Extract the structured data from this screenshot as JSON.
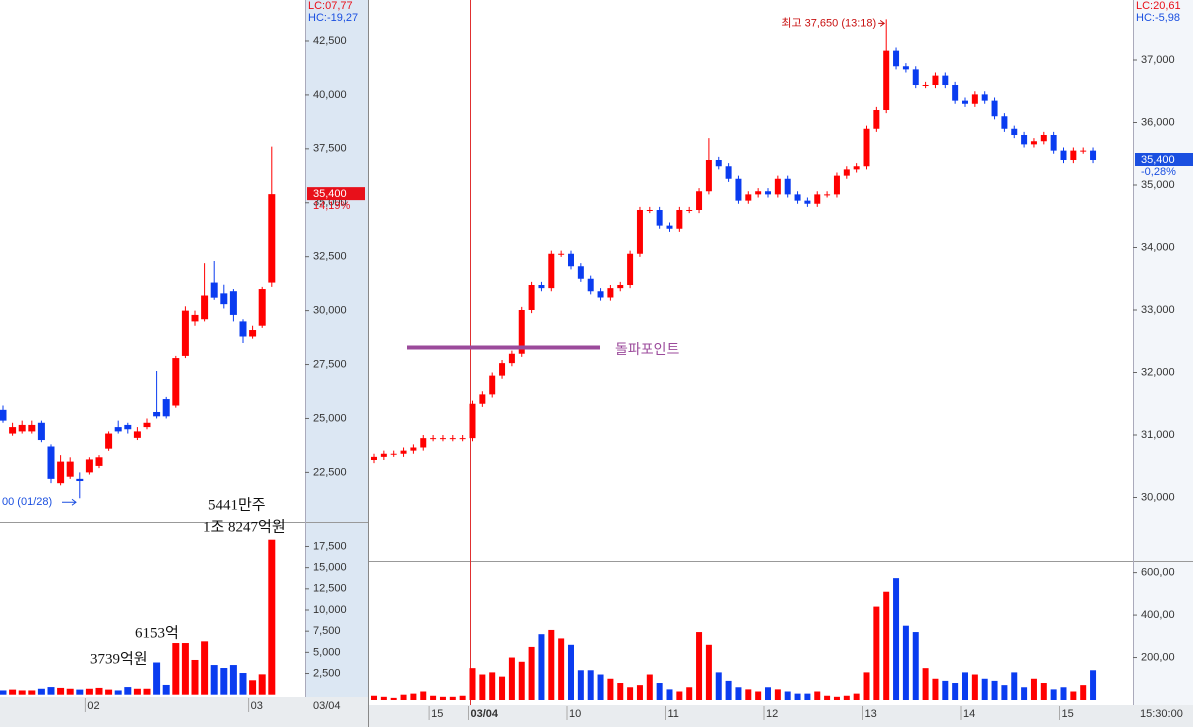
{
  "chart_data": [
    {
      "type": "candlestick",
      "categories": [
        null,
        null,
        null,
        null,
        null,
        null,
        null,
        null,
        null,
        "02",
        null,
        null,
        null,
        null,
        null,
        null,
        null,
        null,
        null,
        null,
        null,
        null,
        null,
        null,
        null,
        null,
        "03",
        null,
        null
      ],
      "open": [
        25400,
        24300,
        24400,
        24400,
        24800,
        23700,
        22000,
        22300,
        22200,
        22500,
        22800,
        23600,
        24600,
        24700,
        24100,
        24600,
        25300,
        25900,
        25600,
        27900,
        29500,
        29600,
        31300,
        30800,
        30900,
        29500,
        28800,
        29300,
        31300
      ],
      "high": [
        25600,
        24800,
        24900,
        24900,
        24900,
        23800,
        23300,
        23200,
        22500,
        23200,
        23300,
        24400,
        24900,
        24800,
        24600,
        25000,
        27200,
        26000,
        27900,
        30200,
        30000,
        32200,
        32300,
        31200,
        31000,
        29600,
        29300,
        31100,
        37600
      ],
      "low": [
        24800,
        24200,
        24300,
        24300,
        23900,
        22000,
        21900,
        22200,
        21300,
        22400,
        22700,
        23500,
        24300,
        24300,
        24000,
        24500,
        25000,
        25000,
        25500,
        27800,
        29300,
        29500,
        30500,
        30100,
        29500,
        28500,
        28700,
        29200,
        31100
      ],
      "close": [
        24900,
        24600,
        24700,
        24700,
        24000,
        22200,
        23000,
        23000,
        22100,
        23100,
        23200,
        24300,
        24400,
        24500,
        24400,
        24800,
        25100,
        25100,
        27800,
        30000,
        29800,
        30700,
        30600,
        30300,
        29800,
        28800,
        29100,
        31000,
        35400
      ],
      "up_color": "#ff0000",
      "down_color": "#0a3cf0",
      "ylim": [
        20200,
        44400
      ],
      "yticks": [
        {
          "value": 22500,
          "label": "22,500"
        },
        {
          "value": 25000,
          "label": "25,000"
        },
        {
          "value": 27500,
          "label": "27,500"
        },
        {
          "value": 30000,
          "label": "30,000"
        },
        {
          "value": 32500,
          "label": "32,500"
        },
        {
          "value": 35000,
          "label": "35,000"
        },
        {
          "value": 37500,
          "label": "37,500"
        },
        {
          "value": 40000,
          "label": "40,000"
        },
        {
          "value": 42500,
          "label": "42,500"
        }
      ],
      "last_price": {
        "value": 35400,
        "label": "35,400"
      },
      "change": "14,19%",
      "lc": "LC:07,77",
      "hc": "HC:-19,27",
      "date_label": "03/04",
      "low_note": "00 (01/28)",
      "volume": {
        "values": [
          500,
          600,
          500,
          500,
          700,
          900,
          800,
          700,
          600,
          700,
          800,
          600,
          500,
          900,
          700,
          700,
          3800,
          1150,
          6100,
          6100,
          4100,
          6300,
          3500,
          3150,
          3500,
          2560,
          1700,
          2400,
          18300
        ],
        "ylim": [
          0,
          20000
        ],
        "yticks": [
          {
            "value": 2500,
            "label": "2,500"
          },
          {
            "value": 5000,
            "label": "5,000"
          },
          {
            "value": 7500,
            "label": "7,500"
          },
          {
            "value": 10000,
            "label": "10,000"
          },
          {
            "value": 12500,
            "label": "12,500"
          },
          {
            "value": 15000,
            "label": "15,000"
          },
          {
            "value": 17500,
            "label": "17,500"
          }
        ],
        "annotations": [
          "5441만주",
          "1조 8247억원",
          "6153억",
          "3739억원"
        ]
      }
    },
    {
      "type": "candlestick",
      "categories": [
        null,
        null,
        null,
        null,
        null,
        null,
        "15",
        null,
        null,
        null,
        "03/04",
        null,
        null,
        null,
        null,
        null,
        null,
        null,
        null,
        null,
        "10",
        null,
        null,
        null,
        null,
        null,
        null,
        null,
        null,
        null,
        "11",
        null,
        null,
        null,
        null,
        null,
        null,
        null,
        null,
        null,
        "12",
        null,
        null,
        null,
        null,
        null,
        null,
        null,
        null,
        null,
        "13",
        null,
        null,
        null,
        null,
        null,
        null,
        null,
        null,
        null,
        "14",
        null,
        null,
        null,
        null,
        null,
        null,
        null,
        null,
        null,
        "15",
        null,
        null,
        null
      ],
      "open": [
        30600,
        30650,
        30700,
        30700,
        30750,
        30800,
        30950,
        30950,
        30950,
        30950,
        30950,
        31500,
        31650,
        31950,
        32150,
        32300,
        33000,
        33400,
        33350,
        33900,
        33900,
        33700,
        33500,
        33300,
        33200,
        33350,
        33400,
        33900,
        34600,
        34600,
        34350,
        34300,
        34600,
        34600,
        34900,
        35400,
        35300,
        35100,
        34750,
        34850,
        34900,
        34850,
        35100,
        34850,
        34750,
        34700,
        34850,
        34850,
        35150,
        35250,
        35300,
        35900,
        36200,
        37150,
        36900,
        36850,
        36600,
        36600,
        36750,
        36600,
        36350,
        36300,
        36450,
        36350,
        36100,
        35900,
        35800,
        35650,
        35700,
        35800,
        35550,
        35400,
        35550,
        35550
      ],
      "high": [
        30700,
        30750,
        30750,
        30800,
        30850,
        31000,
        31000,
        31000,
        31000,
        31000,
        31550,
        31700,
        32000,
        32200,
        32350,
        33050,
        33450,
        33450,
        33950,
        33950,
        33950,
        33750,
        33550,
        33350,
        33400,
        33450,
        33950,
        34650,
        34650,
        34650,
        34400,
        34650,
        34650,
        34950,
        35750,
        35450,
        35350,
        35150,
        34900,
        34950,
        34950,
        35150,
        35150,
        34900,
        34800,
        34900,
        34900,
        35200,
        35300,
        35350,
        35950,
        36250,
        37650,
        37200,
        36950,
        36900,
        36650,
        36800,
        36800,
        36650,
        36400,
        36500,
        36500,
        36400,
        36150,
        35950,
        35850,
        35750,
        35850,
        35850,
        35600,
        35600,
        35600,
        35600
      ],
      "low": [
        30550,
        30600,
        30650,
        30650,
        30700,
        30750,
        30900,
        30900,
        30900,
        30900,
        30900,
        31450,
        31600,
        31900,
        32100,
        32250,
        32950,
        33300,
        33300,
        33850,
        33650,
        33450,
        33250,
        33150,
        33150,
        33300,
        33350,
        33850,
        34550,
        34300,
        34250,
        34250,
        34550,
        34550,
        34850,
        35250,
        35050,
        34700,
        34700,
        34800,
        34800,
        34800,
        34800,
        34700,
        34650,
        34650,
        34800,
        34800,
        35100,
        35200,
        35250,
        35850,
        36150,
        36850,
        36800,
        36550,
        36550,
        36550,
        36550,
        36300,
        36250,
        36250,
        36300,
        36050,
        35850,
        35750,
        35600,
        35600,
        35650,
        35500,
        35350,
        35350,
        35500,
        35350
      ],
      "close": [
        30650,
        30700,
        30700,
        30750,
        30800,
        30950,
        30950,
        30950,
        30950,
        30950,
        31500,
        31650,
        31950,
        32150,
        32300,
        33000,
        33400,
        33350,
        33900,
        33900,
        33700,
        33500,
        33300,
        33200,
        33350,
        33400,
        33900,
        34600,
        34600,
        34350,
        34300,
        34600,
        34600,
        34900,
        35400,
        35300,
        35100,
        34750,
        34850,
        34900,
        34850,
        35100,
        34850,
        34750,
        34700,
        34850,
        34850,
        35150,
        35250,
        35300,
        35900,
        36200,
        37150,
        36900,
        36850,
        36600,
        36600,
        36750,
        36600,
        36350,
        36300,
        36450,
        36350,
        36100,
        35900,
        35800,
        35650,
        35700,
        35800,
        35550,
        35400,
        35550,
        35550,
        35400
      ],
      "up_color": "#ff0000",
      "down_color": "#0a3cf0",
      "ylim": [
        29000,
        37960
      ],
      "yticks": [
        {
          "value": 30000,
          "label": "30,000"
        },
        {
          "value": 31000,
          "label": "31,000"
        },
        {
          "value": 32000,
          "label": "32,000"
        },
        {
          "value": 33000,
          "label": "33,000"
        },
        {
          "value": 34000,
          "label": "34,000"
        },
        {
          "value": 35000,
          "label": "35,000"
        },
        {
          "value": 36000,
          "label": "36,000"
        },
        {
          "value": 37000,
          "label": "37,000"
        }
      ],
      "last_price": {
        "value": 35400,
        "label": "35,400"
      },
      "change": "-0,28%",
      "lc": "LC:20,61",
      "hc": "HC:-5,98",
      "date_label": "15:30:00",
      "high_note": "최고 37,650 (13:18)",
      "breakout": {
        "label": "돌파포인트",
        "value": 32400
      },
      "volume": {
        "values": [
          20,
          15,
          10,
          25,
          30,
          40,
          20,
          15,
          15,
          20,
          150,
          120,
          130,
          110,
          200,
          180,
          250,
          310,
          330,
          290,
          260,
          140,
          140,
          120,
          100,
          80,
          60,
          70,
          120,
          80,
          50,
          40,
          60,
          320,
          260,
          130,
          90,
          60,
          50,
          40,
          60,
          50,
          40,
          30,
          30,
          40,
          20,
          15,
          20,
          30,
          130,
          440,
          510,
          574,
          350,
          320,
          150,
          100,
          90,
          80,
          130,
          120,
          100,
          90,
          70,
          130,
          60,
          100,
          80,
          50,
          60,
          40,
          70,
          140
        ],
        "ylim": [
          0,
          650
        ],
        "yticks": [
          {
            "value": 200,
            "label": "200,00"
          },
          {
            "value": 400,
            "label": "400,00"
          },
          {
            "value": 600,
            "label": "600,00"
          }
        ]
      }
    }
  ]
}
